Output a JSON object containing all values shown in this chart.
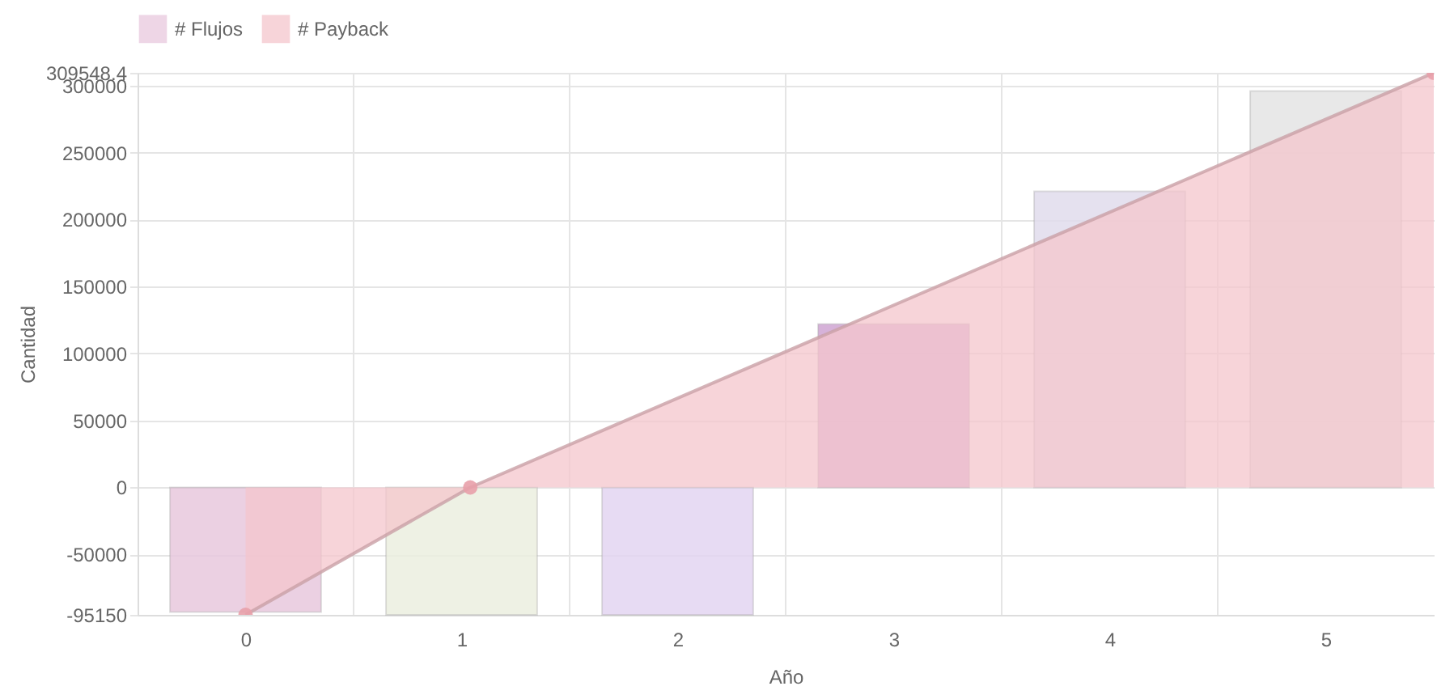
{
  "chart_data": {
    "type": "bar",
    "xlabel": "Año",
    "ylabel": "Cantidad",
    "x": [
      0,
      1,
      2,
      3,
      4,
      5
    ],
    "xlim": [
      -0.5,
      5.5
    ],
    "xticks": [
      0,
      1,
      2,
      3,
      4,
      5
    ],
    "series": [
      {
        "name": "# Flujos",
        "color": "#e8c8de",
        "colors": [
          "#e8c8de",
          "#ecefe0",
          "#e3d5f1",
          "#d0a5d3",
          "#e1dced",
          "#e4e4e4"
        ],
        "values": [
          -93000,
          -95150,
          -95150,
          122000,
          221000,
          296000
        ]
      },
      {
        "name": "# Payback",
        "type": "area",
        "color": "#f4c6cc",
        "x": [
          0,
          1.04,
          5.5
        ],
        "values": [
          -95150,
          0,
          309548.4
        ],
        "marker": "circle"
      }
    ],
    "ylim": [
      -95150,
      309548.4
    ],
    "yticks": [
      -95150,
      -50000,
      0,
      50000,
      100000,
      150000,
      200000,
      250000,
      300000,
      309548.4
    ],
    "grid": true,
    "legend": "top"
  }
}
